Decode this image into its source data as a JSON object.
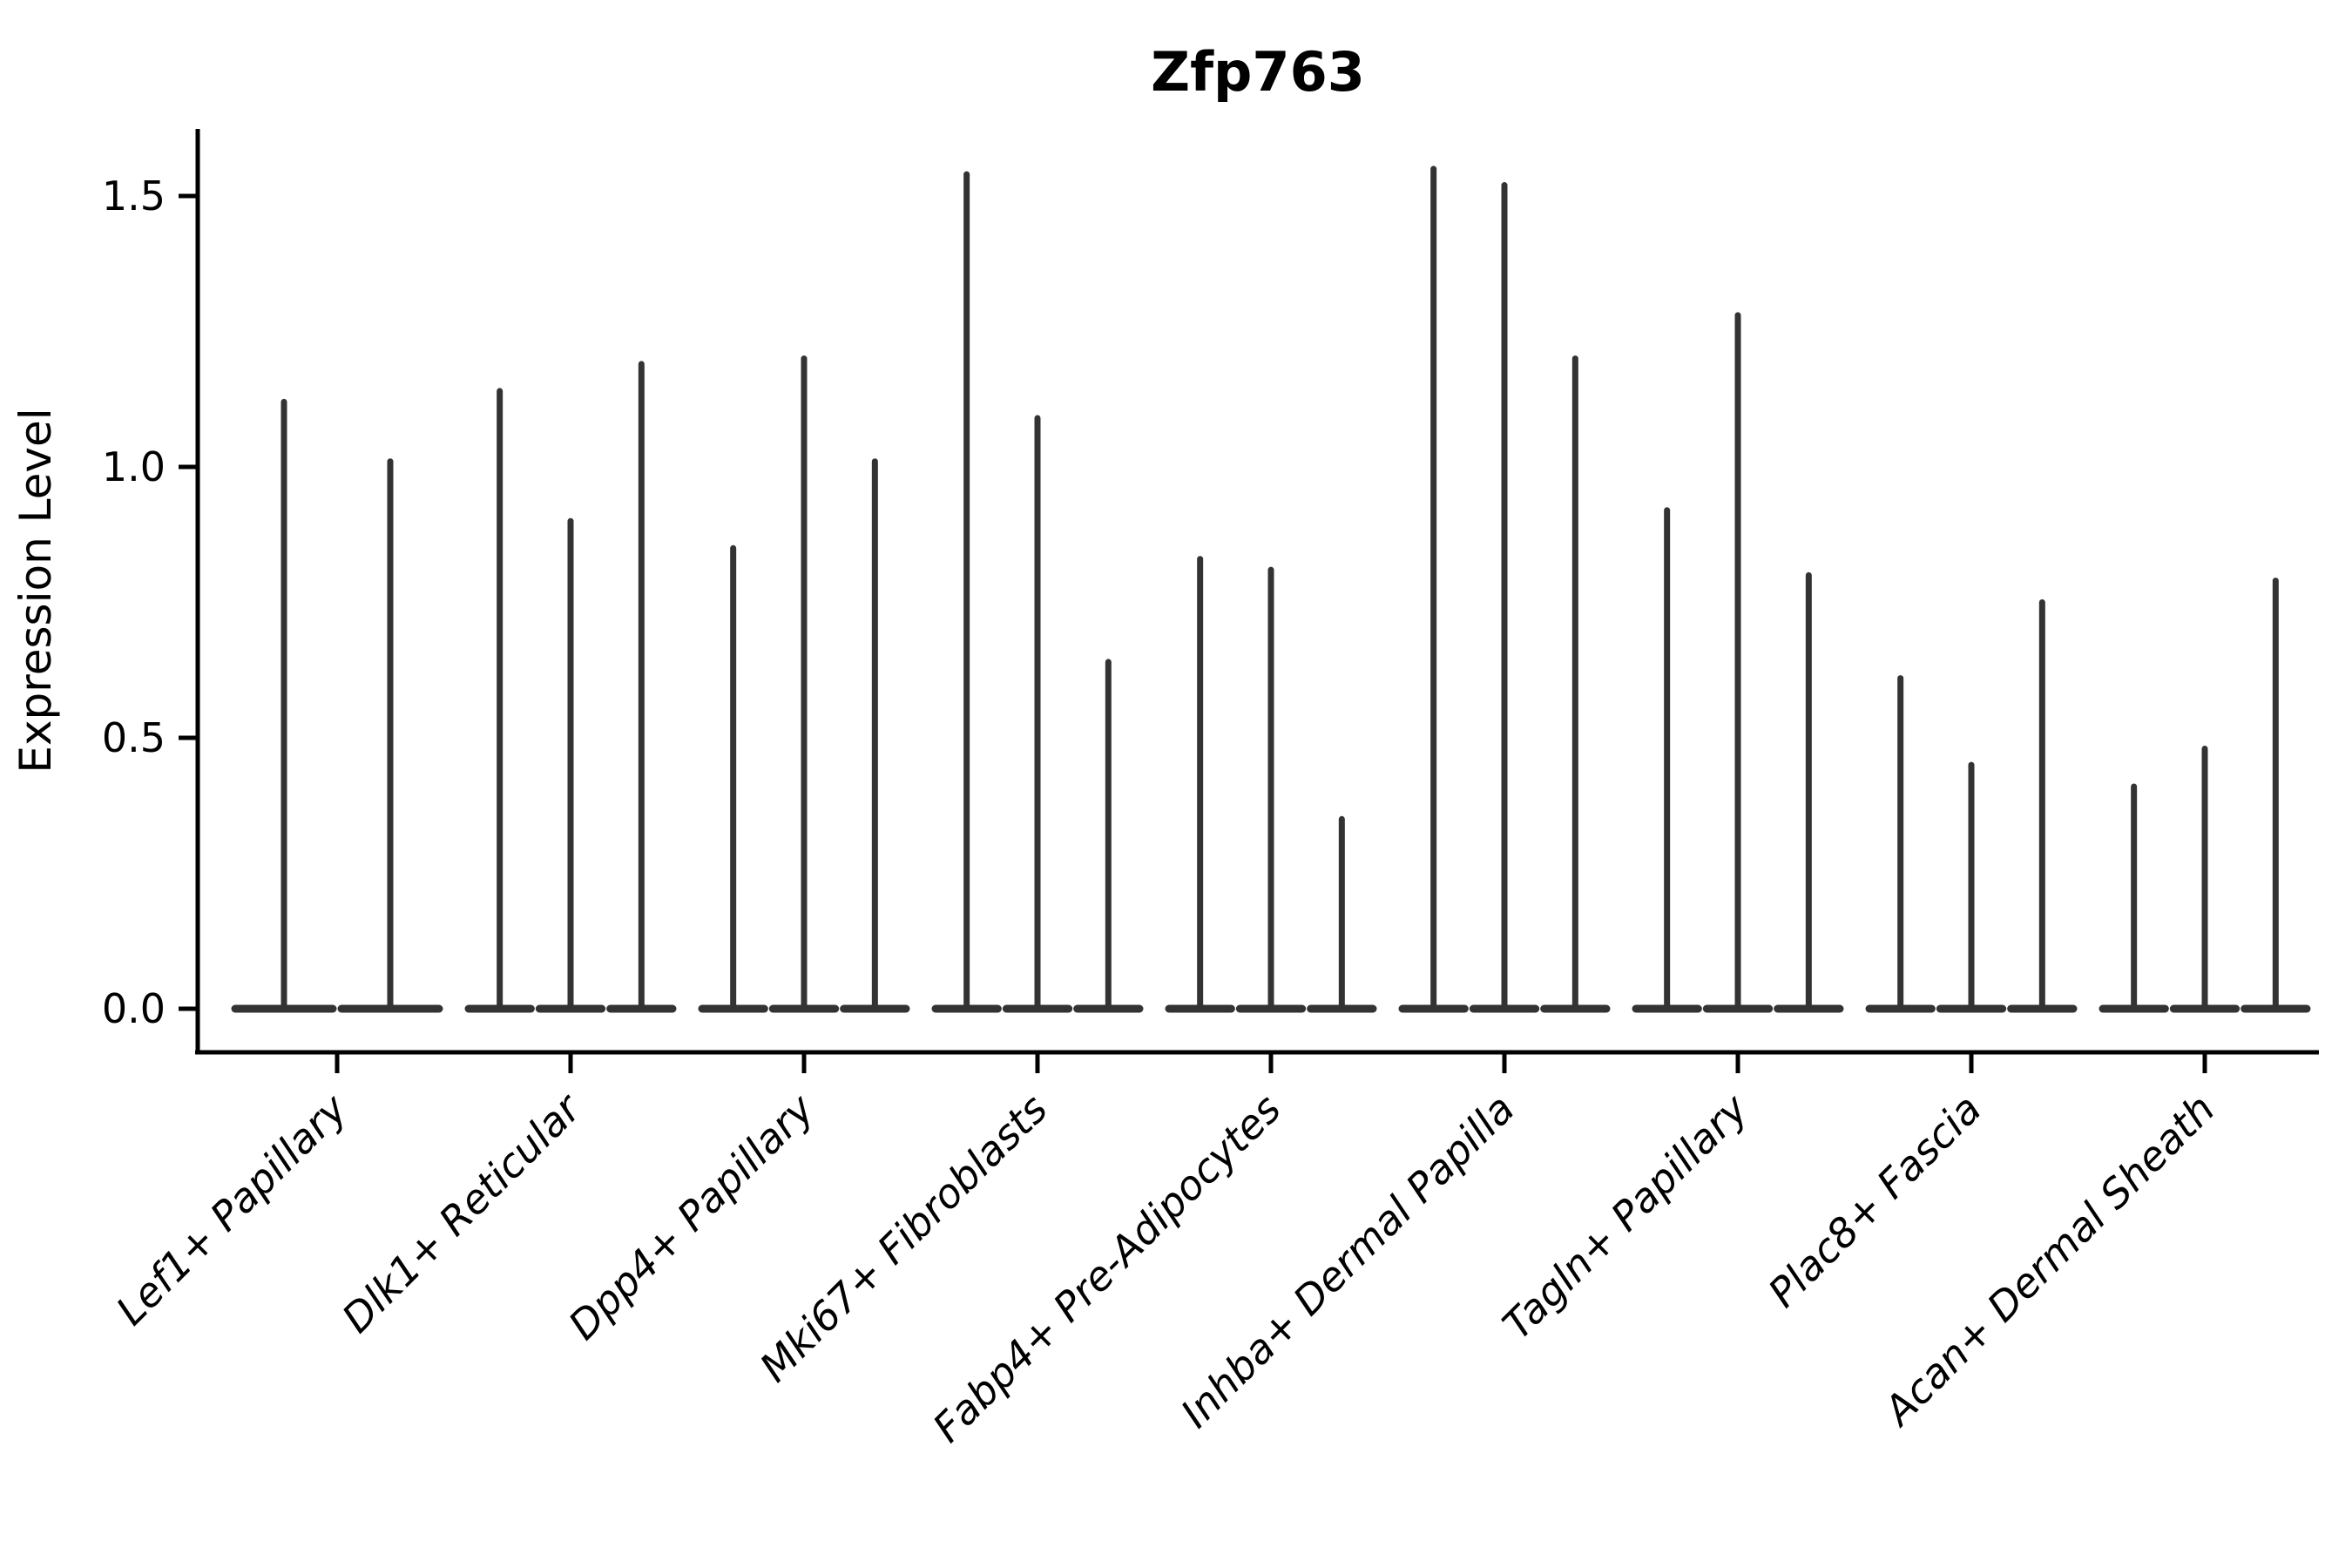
{
  "chart_data": {
    "type": "violin",
    "title": "Zfp763",
    "xlabel": "",
    "ylabel": "Expression Level",
    "yticks": [
      "0.0",
      "0.5",
      "1.0",
      "1.5"
    ],
    "ytick_values": [
      0.0,
      0.5,
      1.0,
      1.5
    ],
    "ylim": [
      -0.08,
      1.62
    ],
    "grid": false,
    "legend": "none",
    "description": "Violin plot of Zfp763 expression; each violin is flat at 0 with a thin spike up to its maximum expression value",
    "colors": {
      "violin": "#333333",
      "axis": "#000000",
      "text": "#000000",
      "background": "#ffffff"
    },
    "groups": [
      {
        "category": "Lef1+ Papillary",
        "violin_maxima": [
          1.12,
          1.01
        ]
      },
      {
        "category": "Dlk1+ Reticular",
        "violin_maxima": [
          1.14,
          0.9,
          1.19
        ]
      },
      {
        "category": "Dpp4+ Papillary",
        "violin_maxima": [
          0.85,
          1.2,
          1.01
        ]
      },
      {
        "category": "Mki67+ Fibroblasts",
        "violin_maxima": [
          1.54,
          1.09,
          0.64
        ]
      },
      {
        "category": "Fabp4+ Pre-Adipocytes",
        "violin_maxima": [
          0.83,
          0.81,
          0.35
        ]
      },
      {
        "category": "Inhba+ Dermal Papilla",
        "violin_maxima": [
          1.55,
          1.52,
          1.2
        ]
      },
      {
        "category": "Tagln+ Papillary",
        "violin_maxima": [
          0.92,
          1.28,
          0.8
        ]
      },
      {
        "category": "Plac8+ Fascia",
        "violin_maxima": [
          0.61,
          0.45,
          0.75
        ]
      },
      {
        "category": "Acan+ Dermal Sheath",
        "violin_maxima": [
          0.41,
          0.48,
          0.79
        ]
      }
    ]
  }
}
